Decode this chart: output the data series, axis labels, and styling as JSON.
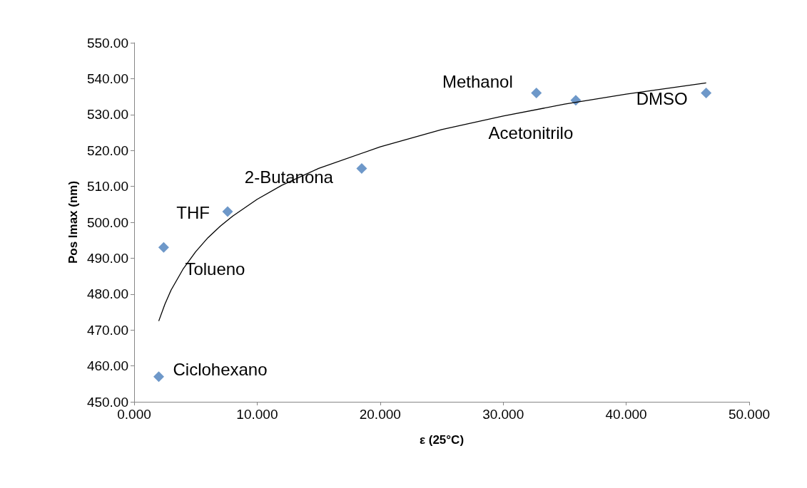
{
  "chart_data": {
    "type": "scatter",
    "xlabel": "ε (25°C)",
    "ylabel": "Pos lmax (nm)",
    "xlim": [
      0,
      50
    ],
    "ylim": [
      450,
      550
    ],
    "xticks": [
      {
        "value": 0,
        "label": "0.000"
      },
      {
        "value": 10,
        "label": "10.000"
      },
      {
        "value": 20,
        "label": "20.000"
      },
      {
        "value": 30,
        "label": "30.000"
      },
      {
        "value": 40,
        "label": "40.000"
      },
      {
        "value": 50,
        "label": "50.000"
      }
    ],
    "yticks": [
      {
        "value": 450,
        "label": "450.00"
      },
      {
        "value": 460,
        "label": "460.00"
      },
      {
        "value": 470,
        "label": "470.00"
      },
      {
        "value": 480,
        "label": "480.00"
      },
      {
        "value": 490,
        "label": "490.00"
      },
      {
        "value": 500,
        "label": "500.00"
      },
      {
        "value": 510,
        "label": "510.00"
      },
      {
        "value": 520,
        "label": "520.00"
      },
      {
        "value": 530,
        "label": "530.00"
      },
      {
        "value": 540,
        "label": "540.00"
      },
      {
        "value": 550,
        "label": "550.00"
      }
    ],
    "grid": false,
    "series": [
      {
        "marker": "diamond",
        "color": "#4a7ebb",
        "x": [
          2.0,
          2.4,
          7.6,
          18.5,
          32.7,
          35.9,
          46.5
        ],
        "values": [
          457,
          493,
          503,
          515,
          536,
          534,
          536
        ]
      },
      {
        "type": "line",
        "marker": "none",
        "color": "#000000",
        "x": [
          2,
          2.5,
          3,
          4,
          5,
          6,
          7,
          8,
          10,
          12,
          15,
          20,
          25,
          30,
          35,
          40,
          46.5
        ],
        "values": [
          472.5,
          477.2,
          481.1,
          487.1,
          491.8,
          495.7,
          498.9,
          501.7,
          506.4,
          510.3,
          515.0,
          521.0,
          525.8,
          529.6,
          532.9,
          535.7,
          538.8
        ]
      }
    ],
    "annotations": [
      {
        "text": "Ciclohexano",
        "x": 2.0,
        "y": 457
      },
      {
        "text": "Tolueno",
        "x": 2.4,
        "y": 493
      },
      {
        "text": "THF",
        "x": 7.6,
        "y": 503
      },
      {
        "text": "2-Butanona",
        "x": 18.5,
        "y": 515
      },
      {
        "text": "Methanol",
        "x": 32.7,
        "y": 536
      },
      {
        "text": "Acetonitrilo",
        "x": 35.9,
        "y": 534
      },
      {
        "text": "DMSO",
        "x": 46.5,
        "y": 536
      }
    ]
  }
}
